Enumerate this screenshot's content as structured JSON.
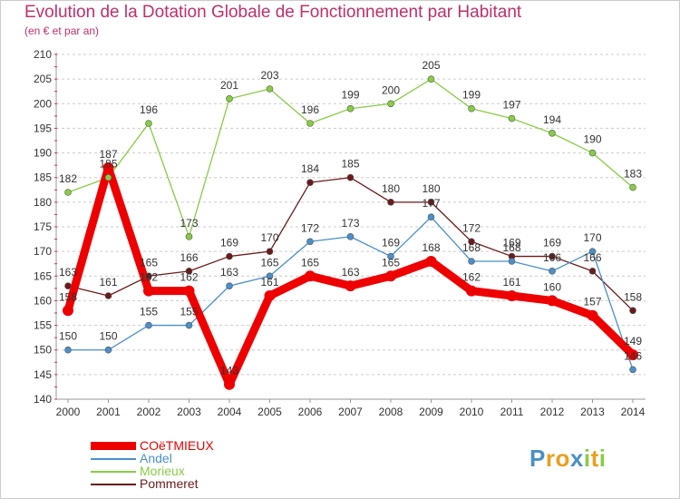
{
  "chart_data": {
    "type": "line",
    "title": "Evolution de la Dotation Globale de Fonctionnement par Habitant",
    "subtitle": "(en € et par an)",
    "xlabel": "",
    "ylabel": "",
    "categories": [
      "2000",
      "2001",
      "2002",
      "2003",
      "2004",
      "2005",
      "2006",
      "2007",
      "2008",
      "2009",
      "2010",
      "2011",
      "2012",
      "2013",
      "2014"
    ],
    "ylim": [
      140,
      210
    ],
    "yticks": [
      140,
      145,
      150,
      155,
      160,
      165,
      170,
      175,
      180,
      185,
      190,
      195,
      200,
      205,
      210
    ],
    "grid": "horizontal dashed",
    "legend": "bottom-left",
    "series": [
      {
        "name": "Pommeret",
        "color": "#6b1a1a",
        "values": [
          163,
          161,
          165,
          166,
          169,
          170,
          184,
          185,
          180,
          180,
          172,
          169,
          169,
          166,
          158
        ]
      },
      {
        "name": "Morieux",
        "color": "#88cc44",
        "values": [
          182,
          185,
          196,
          173,
          201,
          203,
          196,
          199,
          200,
          205,
          199,
          197,
          194,
          190,
          183
        ]
      },
      {
        "name": "Andel",
        "color": "#4a8fc8",
        "values": [
          150,
          150,
          155,
          155,
          163,
          165,
          172,
          173,
          169,
          177,
          168,
          168,
          166,
          170,
          146
        ]
      },
      {
        "name": "COëTMIEUX",
        "color": "#ee0000",
        "values": [
          158,
          187,
          162,
          162,
          143,
          161,
          165,
          163,
          165,
          168,
          162,
          161,
          160,
          157,
          149
        ]
      }
    ]
  },
  "legend": {
    "items": [
      {
        "label": "COëTMIEUX",
        "color": "#ee0000"
      },
      {
        "label": "Andel",
        "color": "#4a8fc8"
      },
      {
        "label": "Morieux",
        "color": "#88cc44"
      },
      {
        "label": "Pommeret",
        "color": "#6b1a1a"
      }
    ]
  },
  "logo": {
    "letters": [
      "P",
      "r",
      "o",
      "x",
      "i",
      "t",
      "i"
    ],
    "colors": [
      "#4a8fc8",
      "#e8a020",
      "#e8a020",
      "#4a8fc8",
      "#88cc44",
      "#e8a020",
      "#88cc44"
    ]
  }
}
